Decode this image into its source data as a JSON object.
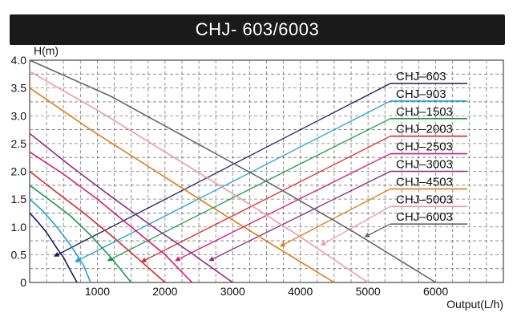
{
  "title": "CHJ- 603/6003",
  "chart_data": {
    "type": "line",
    "title": "CHJ- 603/6003",
    "xlabel": "Output(L/h)",
    "ylabel": "H(m)",
    "xlim": [
      0,
      7000
    ],
    "ylim": [
      0,
      4.0
    ],
    "x_ticks": [
      1000,
      2000,
      3000,
      4000,
      5000,
      6000
    ],
    "x_tick_labels": [
      "1000",
      "2000",
      "3000",
      "4000",
      "5000",
      "6000"
    ],
    "y_ticks": [
      0,
      0.5,
      1.0,
      1.5,
      2.0,
      2.5,
      3.0,
      3.5,
      4.0
    ],
    "y_tick_labels": [
      "0",
      "0.5",
      "1.0",
      "1.5",
      "2.0",
      "2.5",
      "3.0",
      "3.5",
      "4.0"
    ],
    "grid": true,
    "legend_position": "right",
    "series": [
      {
        "name": "CHJ–603",
        "color": "#1f1a5e",
        "x": [
          0,
          100,
          250,
          400,
          500,
          600,
          700
        ],
        "y": [
          1.25,
          1.12,
          0.9,
          0.62,
          0.45,
          0.22,
          0
        ],
        "pointer": [
          410,
          0.5
        ]
      },
      {
        "name": "CHJ–903",
        "color": "#1f9fd6",
        "x": [
          0,
          200,
          400,
          600,
          800,
          900
        ],
        "y": [
          1.5,
          1.28,
          1.0,
          0.68,
          0.3,
          0
        ],
        "pointer": [
          720,
          0.4
        ]
      },
      {
        "name": "CHJ–1503",
        "color": "#1e9a4a",
        "x": [
          0,
          300,
          600,
          900,
          1200,
          1500
        ],
        "y": [
          1.75,
          1.48,
          1.2,
          0.85,
          0.45,
          0
        ],
        "pointer": [
          1200,
          0.42
        ]
      },
      {
        "name": "CHJ–2003",
        "color": "#d42a2a",
        "x": [
          0,
          400,
          800,
          1200,
          1600,
          2000
        ],
        "y": [
          2.0,
          1.62,
          1.25,
          0.85,
          0.43,
          0
        ],
        "pointer": [
          1700,
          0.4
        ]
      },
      {
        "name": "CHJ–2503",
        "color": "#d6197a",
        "x": [
          0,
          500,
          1000,
          1500,
          2000,
          2400
        ],
        "y": [
          2.35,
          1.95,
          1.5,
          1.0,
          0.5,
          0
        ],
        "pointer": [
          2200,
          0.42
        ]
      },
      {
        "name": "CHJ–3003",
        "color": "#8c2a8c",
        "x": [
          0,
          600,
          1200,
          1800,
          2400,
          3000
        ],
        "y": [
          2.68,
          2.1,
          1.55,
          1.02,
          0.52,
          0
        ],
        "pointer": [
          2700,
          0.42
        ]
      },
      {
        "name": "CHJ–4503",
        "color": "#e07a12",
        "x": [
          0,
          900,
          1800,
          2700,
          3600,
          4500
        ],
        "y": [
          3.5,
          2.75,
          2.05,
          1.35,
          0.67,
          0
        ],
        "pointer": [
          3750,
          0.68
        ]
      },
      {
        "name": "CHJ–5003",
        "color": "#ef9aa6",
        "x": [
          0,
          1000,
          2000,
          3000,
          4000,
          5000
        ],
        "y": [
          3.8,
          3.1,
          2.35,
          1.6,
          0.82,
          0
        ],
        "pointer": [
          4350,
          0.7
        ]
      },
      {
        "name": "CHJ–6003",
        "color": "#666666",
        "x": [
          0,
          1200,
          2400,
          3600,
          4800,
          6000
        ],
        "y": [
          4.0,
          3.35,
          2.55,
          1.75,
          0.9,
          0
        ],
        "pointer": [
          5000,
          0.85
        ]
      }
    ]
  }
}
